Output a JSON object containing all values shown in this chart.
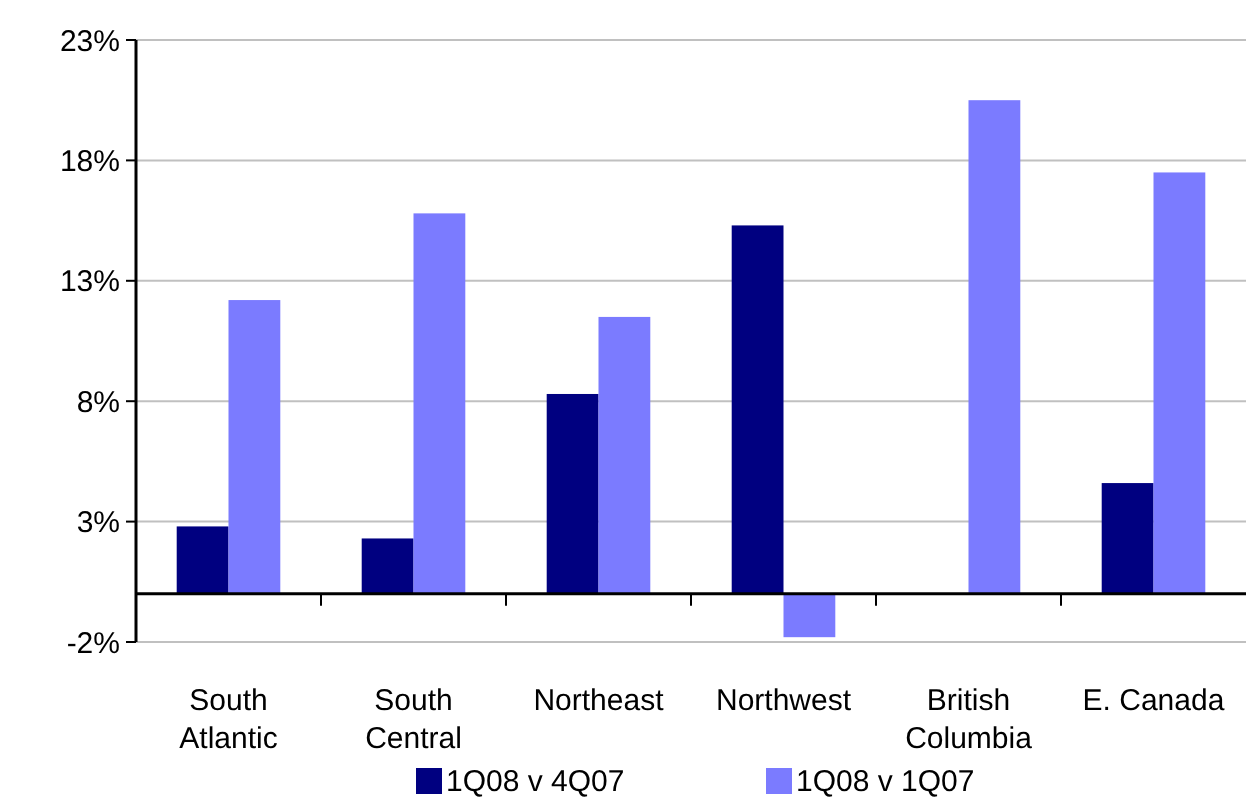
{
  "chart_data": {
    "type": "bar",
    "categories": [
      "South Atlantic",
      "South Central",
      "Northeast",
      "Northwest",
      "British Columbia",
      "E. Canada"
    ],
    "series": [
      {
        "name": "1Q08 v 4Q07",
        "color": "#000080",
        "values": [
          2.8,
          2.3,
          8.3,
          15.3,
          null,
          4.6
        ]
      },
      {
        "name": "1Q08 v 1Q07",
        "color": "#7b7bff",
        "values": [
          12.2,
          15.8,
          11.5,
          -1.8,
          20.5,
          17.5
        ]
      }
    ],
    "ylim": [
      -2,
      23
    ],
    "yticks": [
      {
        "value": -2,
        "label": "-2%"
      },
      {
        "value": 3,
        "label": "3%"
      },
      {
        "value": 8,
        "label": "8%"
      },
      {
        "value": 13,
        "label": "13%"
      },
      {
        "value": 18,
        "label": "18%"
      },
      {
        "value": 23,
        "label": "23%"
      }
    ],
    "grid": "y",
    "legend": "bottom"
  }
}
